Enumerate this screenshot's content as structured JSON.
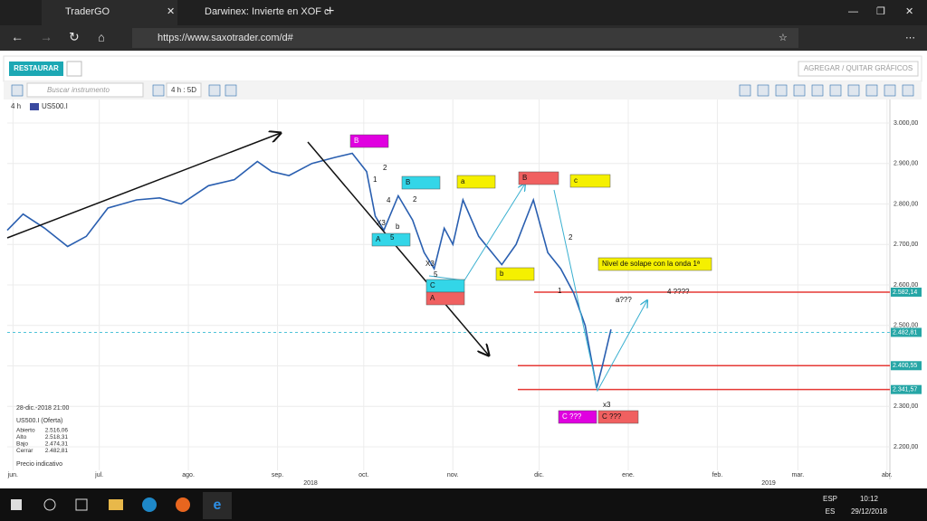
{
  "browser": {
    "tabs": [
      "TraderGO",
      "Darwinex: Invierte en XOF c"
    ],
    "url": "https://www.saxotrader.com/d#"
  },
  "app": {
    "restore_button": "RESTAURAR",
    "add_remove_button": "AGREGAR / QUITAR GRÁFICOS",
    "search_placeholder": "Buscar instrumento",
    "timeframe": "4 h : 5D",
    "interval": "4 h",
    "instrument": "US500.I"
  },
  "chart_data": {
    "type": "line",
    "color": "#2a5fb0",
    "x": [
      -2,
      3.5,
      11,
      19,
      25.5,
      33,
      43,
      51,
      58.5,
      68,
      77,
      85,
      90,
      96,
      104,
      112,
      118,
      123,
      126,
      129,
      134,
      139,
      143,
      146.5,
      150,
      153,
      156.5,
      162,
      170,
      175,
      181,
      186,
      190.5,
      195,
      199,
      203,
      205,
      208
    ],
    "values": [
      2735,
      2775,
      2740,
      2695,
      2720,
      2790,
      2810,
      2815,
      2800,
      2845,
      2860,
      2905,
      2880,
      2870,
      2900,
      2915,
      2925,
      2880,
      2770,
      2735,
      2820,
      2760,
      2680,
      2640,
      2740,
      2700,
      2810,
      2720,
      2650,
      2700,
      2810,
      2680,
      2640,
      2580,
      2500,
      2345,
      2400,
      2490
    ],
    "xlim": [
      -2,
      305
    ],
    "ylim": [
      2142,
      3058
    ],
    "xticks": [
      {
        "value": 0,
        "label": "jun."
      },
      {
        "value": 30,
        "label": "jul."
      },
      {
        "value": 61,
        "label": "ago."
      },
      {
        "value": 92,
        "label": "sep."
      },
      {
        "value": 122,
        "label": "oct."
      },
      {
        "value": 153,
        "label": "nov."
      },
      {
        "value": 183,
        "label": "dic."
      },
      {
        "value": 214,
        "label": "ene."
      },
      {
        "value": 245,
        "label": "feb."
      },
      {
        "value": 273,
        "label": "mar."
      },
      {
        "value": 304,
        "label": "abr."
      }
    ],
    "yticks": [
      {
        "value": 2200,
        "label": "2.200,00"
      },
      {
        "value": 2300,
        "label": "2.300,00"
      },
      {
        "value": 2400,
        "label": "2.400,00"
      },
      {
        "value": 2500,
        "label": "2.500,00"
      },
      {
        "value": 2600,
        "label": "2.600,00"
      },
      {
        "value": 2700,
        "label": "2.700,00"
      },
      {
        "value": 2800,
        "label": "2.800,00"
      },
      {
        "value": 2900,
        "label": "2.900,00"
      },
      {
        "value": 3000,
        "label": "3.000,00"
      }
    ],
    "year_labels": [
      "2018",
      "2019"
    ],
    "grid": true,
    "levels": [
      {
        "value": 2582.14,
        "label": "2.582,14",
        "color": "#e53935"
      },
      {
        "value": 2482.81,
        "label": "2.482,81",
        "color": "#4fc3d9"
      },
      {
        "value": 2400.55,
        "label": "2.400,55",
        "color": "#e53935"
      },
      {
        "value": 2341.57,
        "label": "2.341,57",
        "color": "#e53935"
      }
    ],
    "annotations": [
      {
        "text": "B",
        "color": "#e000e0"
      },
      {
        "text": "2"
      },
      {
        "text": "1"
      },
      {
        "text": "4"
      },
      {
        "text": "X3"
      },
      {
        "text": "b"
      },
      {
        "text": "A",
        "color": "#33d6e8"
      },
      {
        "text": "5"
      },
      {
        "text": "B",
        "color": "#33d6e8"
      },
      {
        "text": "2"
      },
      {
        "text": "X3"
      },
      {
        "text": "5"
      },
      {
        "text": "C",
        "color": "#33d6e8"
      },
      {
        "text": "A",
        "color": "#f06060"
      },
      {
        "text": "a",
        "color": "#f5f000"
      },
      {
        "text": "b",
        "color": "#f5f000"
      },
      {
        "text": "B",
        "color": "#f06060"
      },
      {
        "text": "c",
        "color": "#f5f000"
      },
      {
        "text": "2"
      },
      {
        "text": "1"
      },
      {
        "text": "Nivel de solape con la onda 1ª",
        "color": "#f5f000"
      },
      {
        "text": "a???"
      },
      {
        "text": "4 ????"
      },
      {
        "text": "x3"
      },
      {
        "text": "C ???",
        "color": "#e000e0"
      },
      {
        "text": "C ???",
        "color": "#f06060"
      }
    ]
  },
  "info_panel": {
    "datetime": "28-dic.-2018 21:00",
    "instrument": "US500.I (Oferta)",
    "rows": [
      [
        "Abierto",
        "2.516,06"
      ],
      [
        "Alto",
        "2.518,31"
      ],
      [
        "Bajo",
        "2.474,31"
      ],
      [
        "Cerrar",
        "2.482,81"
      ]
    ],
    "note": "Precio indicativo"
  },
  "taskbar": {
    "language": "ESP",
    "layout": "ES",
    "time": "10:12",
    "date": "29/12/2018"
  }
}
